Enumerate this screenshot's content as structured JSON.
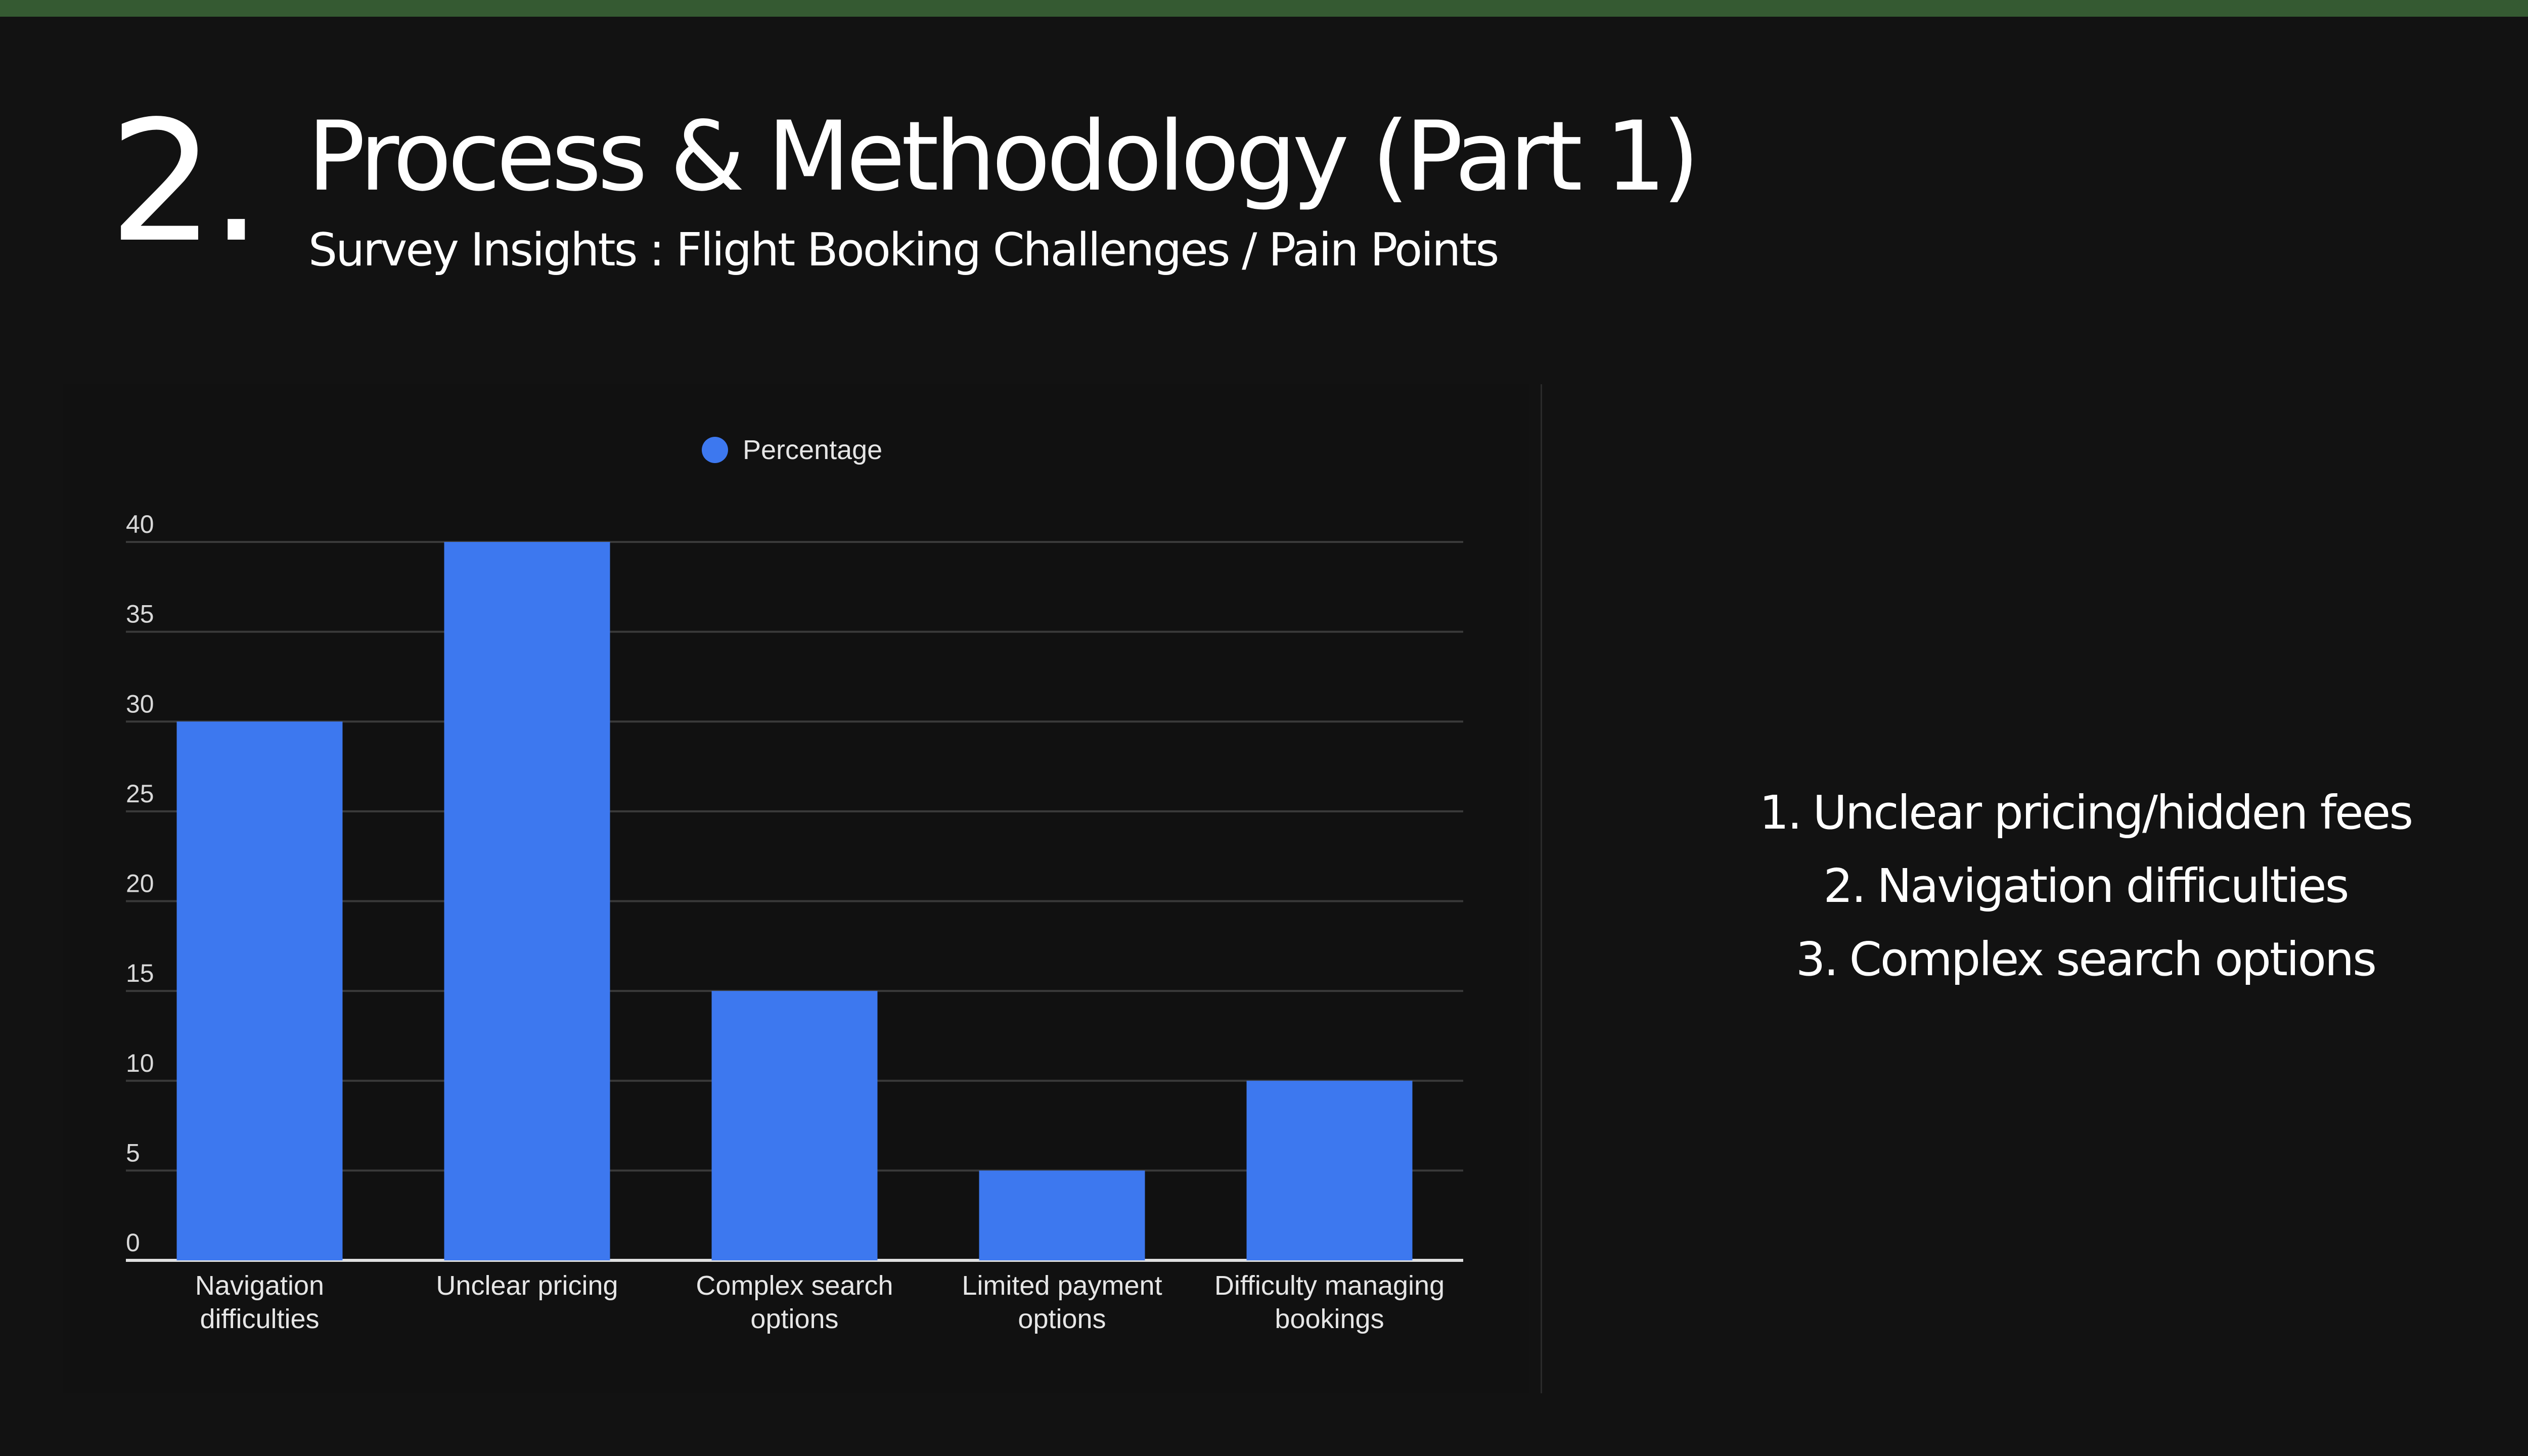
{
  "slide": {
    "number": "2.",
    "title": "Process & Methodology (Part 1)",
    "subtitle": "Survey Insights : Flight Booking Challenges / Pain Points"
  },
  "colors": {
    "background": "#121212",
    "top_bar": "#355a32",
    "bar": "#3d78ef",
    "text": "#ffffff"
  },
  "chart_data": {
    "type": "bar",
    "categories": [
      [
        "Navigation",
        "difficulties"
      ],
      [
        "Unclear pricing"
      ],
      [
        "Complex search",
        "options"
      ],
      [
        "Limited payment",
        "options"
      ],
      [
        "Difficulty managing",
        "bookings"
      ]
    ],
    "series": [
      {
        "name": "Percentage",
        "values": [
          30,
          40,
          15,
          5,
          10
        ]
      }
    ],
    "ylim": [
      0,
      40
    ],
    "yticks": [
      0,
      5,
      10,
      15,
      20,
      25,
      30,
      35,
      40
    ],
    "grid": true,
    "legend_position": "top-center"
  },
  "ranking": [
    {
      "num": "1.",
      "label": "Unclear pricing/hidden fees"
    },
    {
      "num": "2.",
      "label": "Navigation difficulties"
    },
    {
      "num": "3.",
      "label": "Complex search options"
    }
  ]
}
